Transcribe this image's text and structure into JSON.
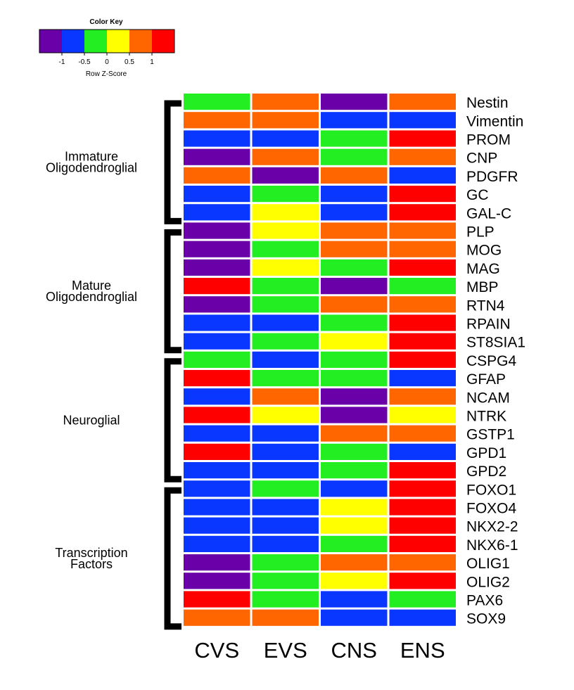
{
  "chart_data": {
    "type": "heatmap",
    "color_key": {
      "title": "Color Key",
      "xlabel": "Row Z-Score",
      "ticks": [
        "-1",
        "-0.5",
        "0",
        "0.5",
        "1"
      ],
      "range": [
        -1.5,
        1.5
      ],
      "colors": [
        "#6a00a8",
        "#0a37ff",
        "#22ee22",
        "#ffff00",
        "#ff6600",
        "#ff0000"
      ]
    },
    "columns": [
      "CVS",
      "EVS",
      "CNS",
      "ENS"
    ],
    "rows": [
      "Nestin",
      "Vimentin",
      "PROM",
      "CNP",
      "PDGFR",
      "GC",
      "GAL-C",
      "PLP",
      "MOG",
      "MAG",
      "MBP",
      "RTN4",
      "RPAIN",
      "ST8SIA1",
      "CSPG4",
      "GFAP",
      "NCAM",
      "NTRK",
      "GSTP1",
      "GPD1",
      "GPD2",
      "FOXO1",
      "FOXO4",
      "NKX2-2",
      "NKX6-1",
      "OLIG1",
      "OLIG2",
      "PAX6",
      "SOX9"
    ],
    "groups": [
      {
        "name": "Immature\nOligodendroglial",
        "start": 0,
        "end": 6
      },
      {
        "name": "Mature\nOligodendroglial",
        "start": 7,
        "end": 13
      },
      {
        "name": "Neuroglial",
        "start": 14,
        "end": 20
      },
      {
        "name": "Transcription\nFactors",
        "start": 21,
        "end": 28
      }
    ],
    "values": [
      [
        -0.25,
        0.75,
        -1.25,
        0.75
      ],
      [
        0.75,
        0.75,
        -0.75,
        -0.75
      ],
      [
        -0.75,
        -0.75,
        -0.25,
        1.25
      ],
      [
        -1.25,
        0.75,
        -0.25,
        0.75
      ],
      [
        0.75,
        -1.25,
        0.75,
        -0.75
      ],
      [
        -0.75,
        -0.25,
        -0.75,
        1.25
      ],
      [
        -0.75,
        0.25,
        -0.75,
        1.25
      ],
      [
        -1.25,
        0.25,
        0.75,
        0.75
      ],
      [
        -1.25,
        -0.25,
        0.75,
        0.75
      ],
      [
        -1.25,
        0.25,
        -0.25,
        1.25
      ],
      [
        1.25,
        -0.25,
        -1.25,
        -0.25
      ],
      [
        -1.25,
        -0.25,
        0.75,
        0.75
      ],
      [
        -0.75,
        -0.75,
        -0.25,
        1.25
      ],
      [
        -0.75,
        -0.25,
        0.25,
        1.25
      ],
      [
        -0.25,
        -0.75,
        -0.25,
        1.25
      ],
      [
        1.25,
        -0.25,
        -0.25,
        -0.75
      ],
      [
        -0.75,
        0.75,
        -1.25,
        0.75
      ],
      [
        1.25,
        0.25,
        -1.25,
        0.25
      ],
      [
        -0.75,
        -0.75,
        0.75,
        0.75
      ],
      [
        1.25,
        -0.75,
        -0.25,
        -0.75
      ],
      [
        -0.75,
        -0.75,
        -0.25,
        1.25
      ],
      [
        -0.75,
        -0.25,
        -0.75,
        1.25
      ],
      [
        -0.75,
        -0.75,
        0.25,
        1.25
      ],
      [
        -0.75,
        -0.75,
        0.25,
        1.25
      ],
      [
        -0.75,
        -0.75,
        -0.25,
        1.25
      ],
      [
        -1.25,
        -0.25,
        0.75,
        0.75
      ],
      [
        -1.25,
        -0.25,
        0.25,
        1.25
      ],
      [
        1.25,
        -0.25,
        -0.75,
        -0.25
      ],
      [
        0.75,
        0.75,
        -0.75,
        -0.75
      ]
    ]
  }
}
